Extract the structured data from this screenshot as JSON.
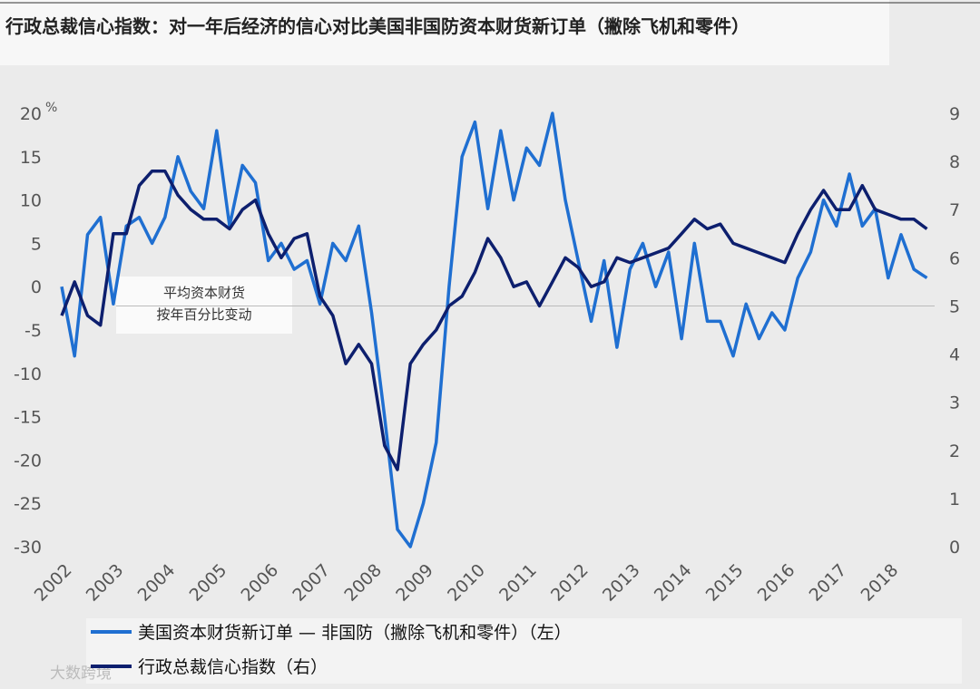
{
  "chart_data": {
    "type": "line",
    "title": "行政总裁信心指数：对一年后经济的信心对比美国非国防资本财货新订单（撇除飞机和零件）",
    "annotation": [
      "平均资本财货",
      "按年百分比变动"
    ],
    "y_unit": "%",
    "watermark": "大数跨境",
    "x": [
      2002,
      2002.25,
      2002.5,
      2002.75,
      2003,
      2003.25,
      2003.5,
      2003.75,
      2004,
      2004.25,
      2004.5,
      2004.75,
      2005,
      2005.25,
      2005.5,
      2005.75,
      2006,
      2006.25,
      2006.5,
      2006.75,
      2007,
      2007.25,
      2007.5,
      2007.75,
      2008,
      2008.25,
      2008.5,
      2008.75,
      2009,
      2009.25,
      2009.5,
      2009.75,
      2010,
      2010.25,
      2010.5,
      2010.75,
      2011,
      2011.25,
      2011.5,
      2011.75,
      2012,
      2012.25,
      2012.5,
      2012.75,
      2013,
      2013.25,
      2013.5,
      2013.75,
      2014,
      2014.25,
      2014.5,
      2014.75,
      2015,
      2015.25,
      2015.5,
      2015.75,
      2016,
      2016.25,
      2016.5,
      2016.75,
      2017,
      2017.25,
      2017.5,
      2017.75,
      2018,
      2018.25,
      2018.5,
      2018.75
    ],
    "xlim": [
      2002,
      2018.9
    ],
    "xticks": [
      2002,
      2003,
      2004,
      2005,
      2006,
      2007,
      2008,
      2009,
      2010,
      2011,
      2012,
      2013,
      2014,
      2015,
      2016,
      2017,
      2018
    ],
    "ylim": [
      -30,
      20
    ],
    "yticks": [
      20,
      15,
      10,
      5,
      0,
      -5,
      -10,
      -15,
      -20,
      -25,
      -30
    ],
    "y2lim": [
      0,
      9
    ],
    "y2ticks": [
      9,
      8,
      7,
      6,
      5,
      4,
      3,
      2,
      1,
      0
    ],
    "y2_reference": 5,
    "series": [
      {
        "name": "美国资本财货新订单 — 非国防（撇除飞机和零件）（左）",
        "color": "#1f6fd1",
        "axis": "y",
        "values": [
          0,
          -8,
          6,
          8,
          -2,
          7,
          8,
          5,
          8,
          15,
          11,
          9,
          18,
          7,
          14,
          12,
          3,
          5,
          2,
          3,
          -2,
          5,
          3,
          7,
          -3,
          -15,
          -28,
          -30,
          -25,
          -18,
          0,
          15,
          19,
          9,
          18,
          10,
          16,
          14,
          20,
          10,
          3,
          -4,
          3,
          -7,
          2,
          5,
          0,
          4,
          -6,
          5,
          -4,
          -4,
          -8,
          -2,
          -6,
          -3,
          -5,
          1,
          4,
          10,
          7,
          13,
          7,
          9,
          1,
          6,
          2,
          1
        ]
      },
      {
        "name": "行政总裁信心指数（右）",
        "color": "#0d1f6e",
        "axis": "y2",
        "values": [
          4.8,
          5.5,
          4.8,
          4.6,
          6.5,
          6.5,
          7.5,
          7.8,
          7.8,
          7.3,
          7.0,
          6.8,
          6.8,
          6.6,
          7.0,
          7.2,
          6.5,
          6.0,
          6.4,
          6.5,
          5.2,
          4.8,
          3.8,
          4.2,
          3.8,
          2.1,
          1.6,
          3.8,
          4.2,
          4.5,
          5.0,
          5.2,
          5.7,
          6.4,
          6.0,
          5.4,
          5.5,
          5.0,
          5.5,
          6.0,
          5.8,
          5.4,
          5.5,
          6.0,
          5.9,
          6.0,
          6.1,
          6.2,
          6.5,
          6.8,
          6.6,
          6.7,
          6.3,
          6.2,
          6.1,
          6.0,
          5.9,
          6.5,
          7.0,
          7.4,
          7.0,
          7.0,
          7.5,
          7.0,
          6.9,
          6.8,
          6.8,
          6.6
        ]
      }
    ]
  }
}
